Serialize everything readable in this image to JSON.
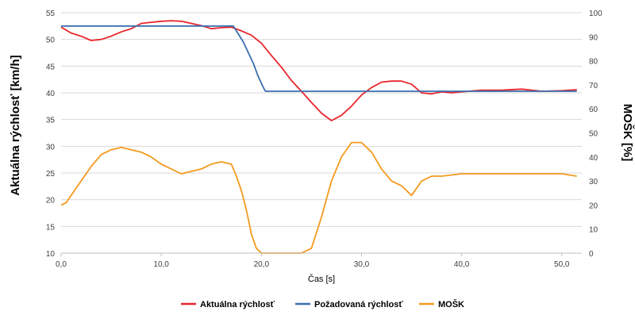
{
  "chart_data": {
    "type": "line",
    "xlabel": "Čas [s]",
    "ylabel_left": "Aktuálna rýchlosť [km/h]",
    "ylabel_right": "MOŠK [%]",
    "xlim": [
      0,
      52
    ],
    "ylim_left": [
      10,
      55
    ],
    "ylim_right": [
      0,
      100
    ],
    "x_ticks": [
      0,
      10,
      20,
      30,
      40,
      50
    ],
    "x_tick_labels": [
      "0,0",
      "10,0",
      "20,0",
      "30,0",
      "40,0",
      "50,0"
    ],
    "y_left_ticks": [
      10,
      15,
      20,
      25,
      30,
      35,
      40,
      45,
      50,
      55
    ],
    "y_right_ticks": [
      0,
      10,
      20,
      30,
      40,
      50,
      60,
      70,
      80,
      90,
      100
    ],
    "grid": true,
    "legend_position": "bottom",
    "series": [
      {
        "name": "Aktuálna rýchlosť",
        "axis": "left",
        "color": "#e8262c",
        "x": [
          0,
          1,
          2,
          3,
          4,
          5,
          6,
          7,
          8,
          9,
          10,
          11,
          12,
          13,
          14,
          15,
          16,
          17,
          18,
          19,
          20,
          21,
          22,
          23,
          24,
          25,
          26,
          27,
          28,
          29,
          30,
          31,
          32,
          33,
          34,
          35,
          36,
          37,
          38,
          39,
          40,
          42,
          44,
          46,
          48,
          50,
          51.5
        ],
        "y": [
          52.3,
          51.2,
          50.6,
          49.8,
          50.0,
          50.6,
          51.4,
          52.0,
          53.0,
          53.2,
          53.4,
          53.5,
          53.4,
          53.0,
          52.6,
          52.0,
          52.2,
          52.3,
          51.6,
          50.8,
          49.3,
          47.0,
          44.8,
          42.3,
          40.3,
          38.2,
          36.2,
          34.8,
          35.8,
          37.5,
          39.6,
          41.0,
          42.0,
          42.2,
          42.2,
          41.6,
          40.0,
          39.8,
          40.2,
          40.0,
          40.2,
          40.5,
          40.5,
          40.7,
          40.3,
          40.4,
          40.6
        ]
      },
      {
        "name": "Požadovaná rýchlosť",
        "axis": "left",
        "color": "#3a6fb0",
        "x": [
          0,
          17.2,
          17.7,
          18.2,
          18.7,
          19.2,
          19.7,
          20.2,
          20.4,
          51.5
        ],
        "y": [
          52.5,
          52.5,
          51.0,
          49.5,
          47.5,
          45.5,
          43.0,
          41.0,
          40.3,
          40.3
        ]
      },
      {
        "name": "MOŠK",
        "axis": "right",
        "color": "#f39a1e",
        "x": [
          0,
          0.5,
          1,
          2,
          3,
          4,
          5,
          6,
          7,
          8,
          9,
          10,
          11,
          12,
          13,
          14,
          15,
          16,
          17,
          17.5,
          18,
          18.5,
          19,
          19.5,
          20,
          21,
          22,
          23,
          24,
          25,
          26,
          27,
          28,
          29,
          30,
          31,
          32,
          33,
          34,
          35,
          36,
          37,
          38,
          40,
          42,
          44,
          46,
          48,
          50,
          51.5
        ],
        "y": [
          20,
          21,
          24,
          30,
          36,
          41,
          43,
          44,
          43,
          42,
          40,
          37,
          35,
          33,
          34,
          35,
          37,
          38,
          37,
          32,
          26,
          18,
          8,
          2,
          0,
          0,
          0,
          0,
          0,
          2,
          15,
          30,
          40,
          46,
          46,
          42,
          35,
          30,
          28,
          24,
          30,
          32,
          32,
          33,
          33,
          33,
          33,
          33,
          33,
          32
        ]
      }
    ]
  }
}
